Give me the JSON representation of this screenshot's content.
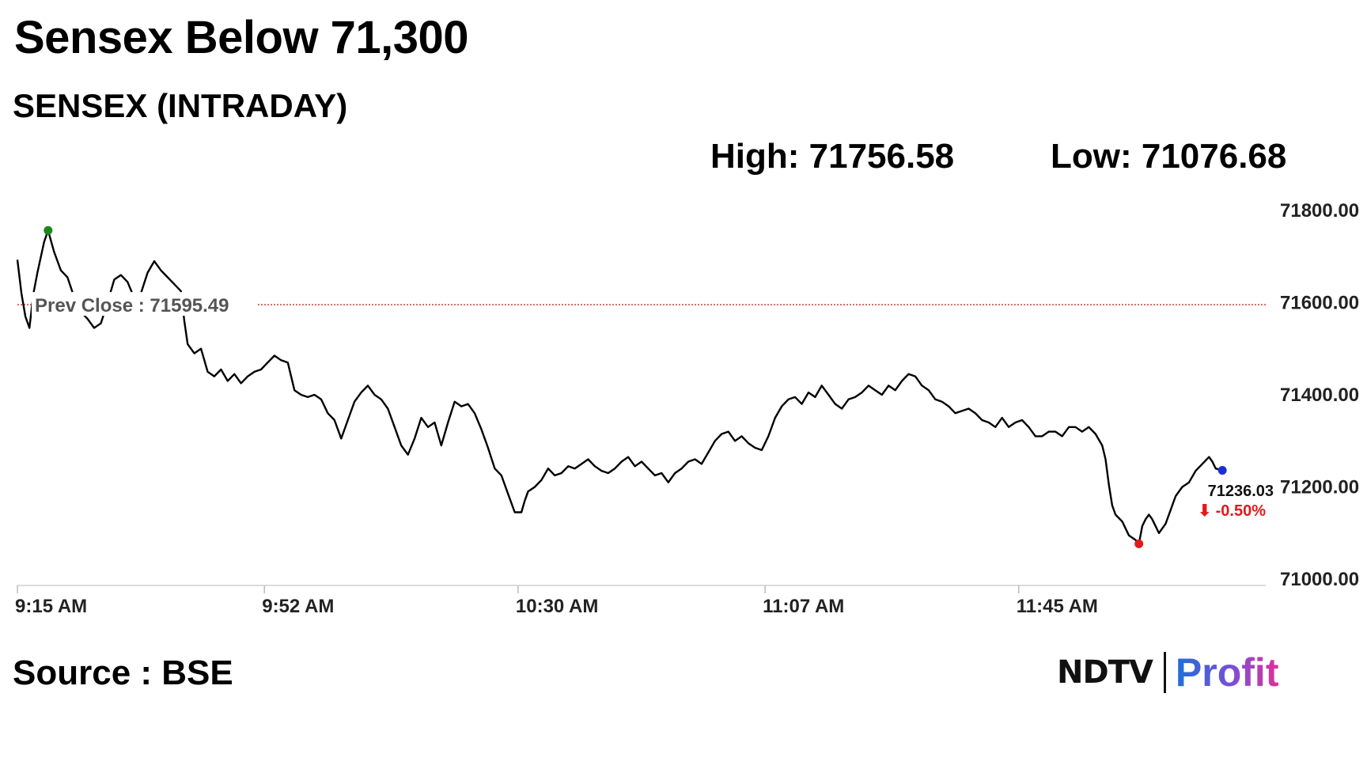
{
  "headline": "Sensex Below 71,300",
  "chart_data": {
    "type": "line",
    "title": "SENSEX (INTRADAY)",
    "high_text": "High: 71756.58",
    "low_text": "Low: 71076.68",
    "high": 71756.58,
    "low": 71076.68,
    "prev_close": 71595.49,
    "prev_close_text": "Prev Close : 71595.49",
    "last_value_text": "71236.03",
    "change_text": "⬇ -0.50%",
    "y_ticks": [
      71800,
      71600,
      71400,
      71200,
      71000
    ],
    "y_tick_labels": [
      "71800.00",
      "71600.00",
      "71400.00",
      "71200.00",
      "71000.00"
    ],
    "ylim": [
      71000,
      71800
    ],
    "x_ticks": [
      "9:15 AM",
      "9:52 AM",
      "10:30 AM",
      "11:07 AM",
      "11:45 AM"
    ],
    "x_tick_minutes": [
      0,
      37,
      75,
      112,
      150
    ],
    "x_range_minutes": [
      0,
      187
    ],
    "series": [
      {
        "points": [
          [
            0,
            71693
          ],
          [
            0.6,
            71620
          ],
          [
            1.2,
            71570
          ],
          [
            1.8,
            71545
          ],
          [
            2.4,
            71620
          ],
          [
            3.0,
            71665
          ],
          [
            4.0,
            71732
          ],
          [
            4.6,
            71756.58
          ],
          [
            5.5,
            71710
          ],
          [
            6.5,
            71670
          ],
          [
            7.5,
            71655
          ],
          [
            8.5,
            71612
          ],
          [
            9.5,
            71580
          ],
          [
            10.5,
            71565
          ],
          [
            11.5,
            71545
          ],
          [
            12.5,
            71555
          ],
          [
            13.5,
            71600
          ],
          [
            14.5,
            71650
          ],
          [
            15.5,
            71660
          ],
          [
            16.5,
            71645
          ],
          [
            17.5,
            71610
          ],
          [
            18.5,
            71620
          ],
          [
            19.5,
            71665
          ],
          [
            20.5,
            71690
          ],
          [
            21.5,
            71670
          ],
          [
            22.5,
            71655
          ],
          [
            23.5,
            71640
          ],
          [
            24.5,
            71625
          ],
          [
            25.0,
            71560
          ],
          [
            25.5,
            71510
          ],
          [
            26.5,
            71490
          ],
          [
            27.5,
            71500
          ],
          [
            28.5,
            71450
          ],
          [
            29.5,
            71440
          ],
          [
            30.5,
            71455
          ],
          [
            31.5,
            71430
          ],
          [
            32.5,
            71445
          ],
          [
            33.5,
            71425
          ],
          [
            34.5,
            71440
          ],
          [
            35.5,
            71450
          ],
          [
            36.5,
            71455
          ],
          [
            37.5,
            71470
          ],
          [
            38.5,
            71485
          ],
          [
            39.5,
            71475
          ],
          [
            40.5,
            71470
          ],
          [
            41.5,
            71410
          ],
          [
            42.5,
            71400
          ],
          [
            43.5,
            71395
          ],
          [
            44.5,
            71400
          ],
          [
            45.5,
            71390
          ],
          [
            46.5,
            71360
          ],
          [
            47.5,
            71345
          ],
          [
            48.5,
            71305
          ],
          [
            49.5,
            71345
          ],
          [
            50.5,
            71385
          ],
          [
            51.5,
            71405
          ],
          [
            52.5,
            71420
          ],
          [
            53.5,
            71400
          ],
          [
            54.5,
            71390
          ],
          [
            55.5,
            71370
          ],
          [
            56.5,
            71330
          ],
          [
            57.5,
            71290
          ],
          [
            58.5,
            71270
          ],
          [
            59.5,
            71305
          ],
          [
            60.5,
            71350
          ],
          [
            61.5,
            71330
          ],
          [
            62.5,
            71340
          ],
          [
            63.5,
            71290
          ],
          [
            64.5,
            71340
          ],
          [
            65.5,
            71385
          ],
          [
            66.5,
            71375
          ],
          [
            67.5,
            71380
          ],
          [
            68.5,
            71360
          ],
          [
            69.5,
            71325
          ],
          [
            70.5,
            71285
          ],
          [
            71.5,
            71240
          ],
          [
            72.5,
            71225
          ],
          [
            73.5,
            71185
          ],
          [
            74.5,
            71145
          ],
          [
            75.5,
            71145
          ],
          [
            76.0,
            71170
          ],
          [
            76.5,
            71190
          ],
          [
            77.5,
            71200
          ],
          [
            78.5,
            71215
          ],
          [
            79.5,
            71240
          ],
          [
            80.5,
            71225
          ],
          [
            81.5,
            71230
          ],
          [
            82.5,
            71245
          ],
          [
            83.5,
            71240
          ],
          [
            84.5,
            71250
          ],
          [
            85.5,
            71260
          ],
          [
            86.5,
            71245
          ],
          [
            87.5,
            71235
          ],
          [
            88.5,
            71230
          ],
          [
            89.5,
            71240
          ],
          [
            90.5,
            71255
          ],
          [
            91.5,
            71265
          ],
          [
            92.5,
            71245
          ],
          [
            93.5,
            71255
          ],
          [
            94.5,
            71240
          ],
          [
            95.5,
            71225
          ],
          [
            96.5,
            71230
          ],
          [
            97.5,
            71210
          ],
          [
            98.5,
            71230
          ],
          [
            99.5,
            71240
          ],
          [
            100.5,
            71255
          ],
          [
            101.5,
            71260
          ],
          [
            102.5,
            71250
          ],
          [
            103.5,
            71275
          ],
          [
            104.5,
            71300
          ],
          [
            105.5,
            71315
          ],
          [
            106.5,
            71320
          ],
          [
            107.5,
            71300
          ],
          [
            108.5,
            71310
          ],
          [
            109.5,
            71295
          ],
          [
            110.5,
            71285
          ],
          [
            111.5,
            71280
          ],
          [
            112.5,
            71310
          ],
          [
            113.5,
            71350
          ],
          [
            114.5,
            71375
          ],
          [
            115.5,
            71390
          ],
          [
            116.5,
            71395
          ],
          [
            117.5,
            71380
          ],
          [
            118.5,
            71405
          ],
          [
            119.5,
            71395
          ],
          [
            120.5,
            71420
          ],
          [
            121.5,
            71400
          ],
          [
            122.5,
            71380
          ],
          [
            123.5,
            71370
          ],
          [
            124.5,
            71390
          ],
          [
            125.5,
            71395
          ],
          [
            126.5,
            71405
          ],
          [
            127.5,
            71420
          ],
          [
            128.5,
            71410
          ],
          [
            129.5,
            71400
          ],
          [
            130.5,
            71420
          ],
          [
            131.5,
            71410
          ],
          [
            132.5,
            71430
          ],
          [
            133.5,
            71445
          ],
          [
            134.5,
            71440
          ],
          [
            135.5,
            71420
          ],
          [
            136.5,
            71410
          ],
          [
            137.5,
            71390
          ],
          [
            138.5,
            71385
          ],
          [
            139.5,
            71375
          ],
          [
            140.5,
            71360
          ],
          [
            141.5,
            71365
          ],
          [
            142.5,
            71370
          ],
          [
            143.5,
            71360
          ],
          [
            144.5,
            71345
          ],
          [
            145.5,
            71340
          ],
          [
            146.5,
            71330
          ],
          [
            147.5,
            71350
          ],
          [
            148.5,
            71330
          ],
          [
            149.5,
            71340
          ],
          [
            150.5,
            71345
          ],
          [
            151.5,
            71330
          ],
          [
            152.5,
            71310
          ],
          [
            153.5,
            71310
          ],
          [
            154.5,
            71320
          ],
          [
            155.5,
            71320
          ],
          [
            156.5,
            71310
          ],
          [
            157.5,
            71330
          ],
          [
            158.5,
            71330
          ],
          [
            159.5,
            71320
          ],
          [
            160.5,
            71330
          ],
          [
            161.5,
            71315
          ],
          [
            162.5,
            71290
          ],
          [
            163.0,
            71260
          ],
          [
            163.5,
            71205
          ],
          [
            164.0,
            71160
          ],
          [
            164.5,
            71140
          ],
          [
            165.5,
            71125
          ],
          [
            166.5,
            71095
          ],
          [
            167.5,
            71085
          ],
          [
            168.0,
            71076.68
          ],
          [
            168.5,
            71115
          ],
          [
            169.0,
            71130
          ],
          [
            169.5,
            71140
          ],
          [
            170.0,
            71130
          ],
          [
            171.0,
            71100
          ],
          [
            172.0,
            71120
          ],
          [
            173.5,
            71180
          ],
          [
            174.5,
            71200
          ],
          [
            175.5,
            71210
          ],
          [
            176.5,
            71235
          ],
          [
            177.5,
            71250
          ],
          [
            178.5,
            71265
          ],
          [
            179.0,
            71255
          ],
          [
            179.5,
            71240
          ],
          [
            180.5,
            71236.03
          ]
        ]
      }
    ]
  },
  "footer": {
    "source": "Source : BSE",
    "logo_left": "NDTV",
    "logo_right": "Profit"
  }
}
